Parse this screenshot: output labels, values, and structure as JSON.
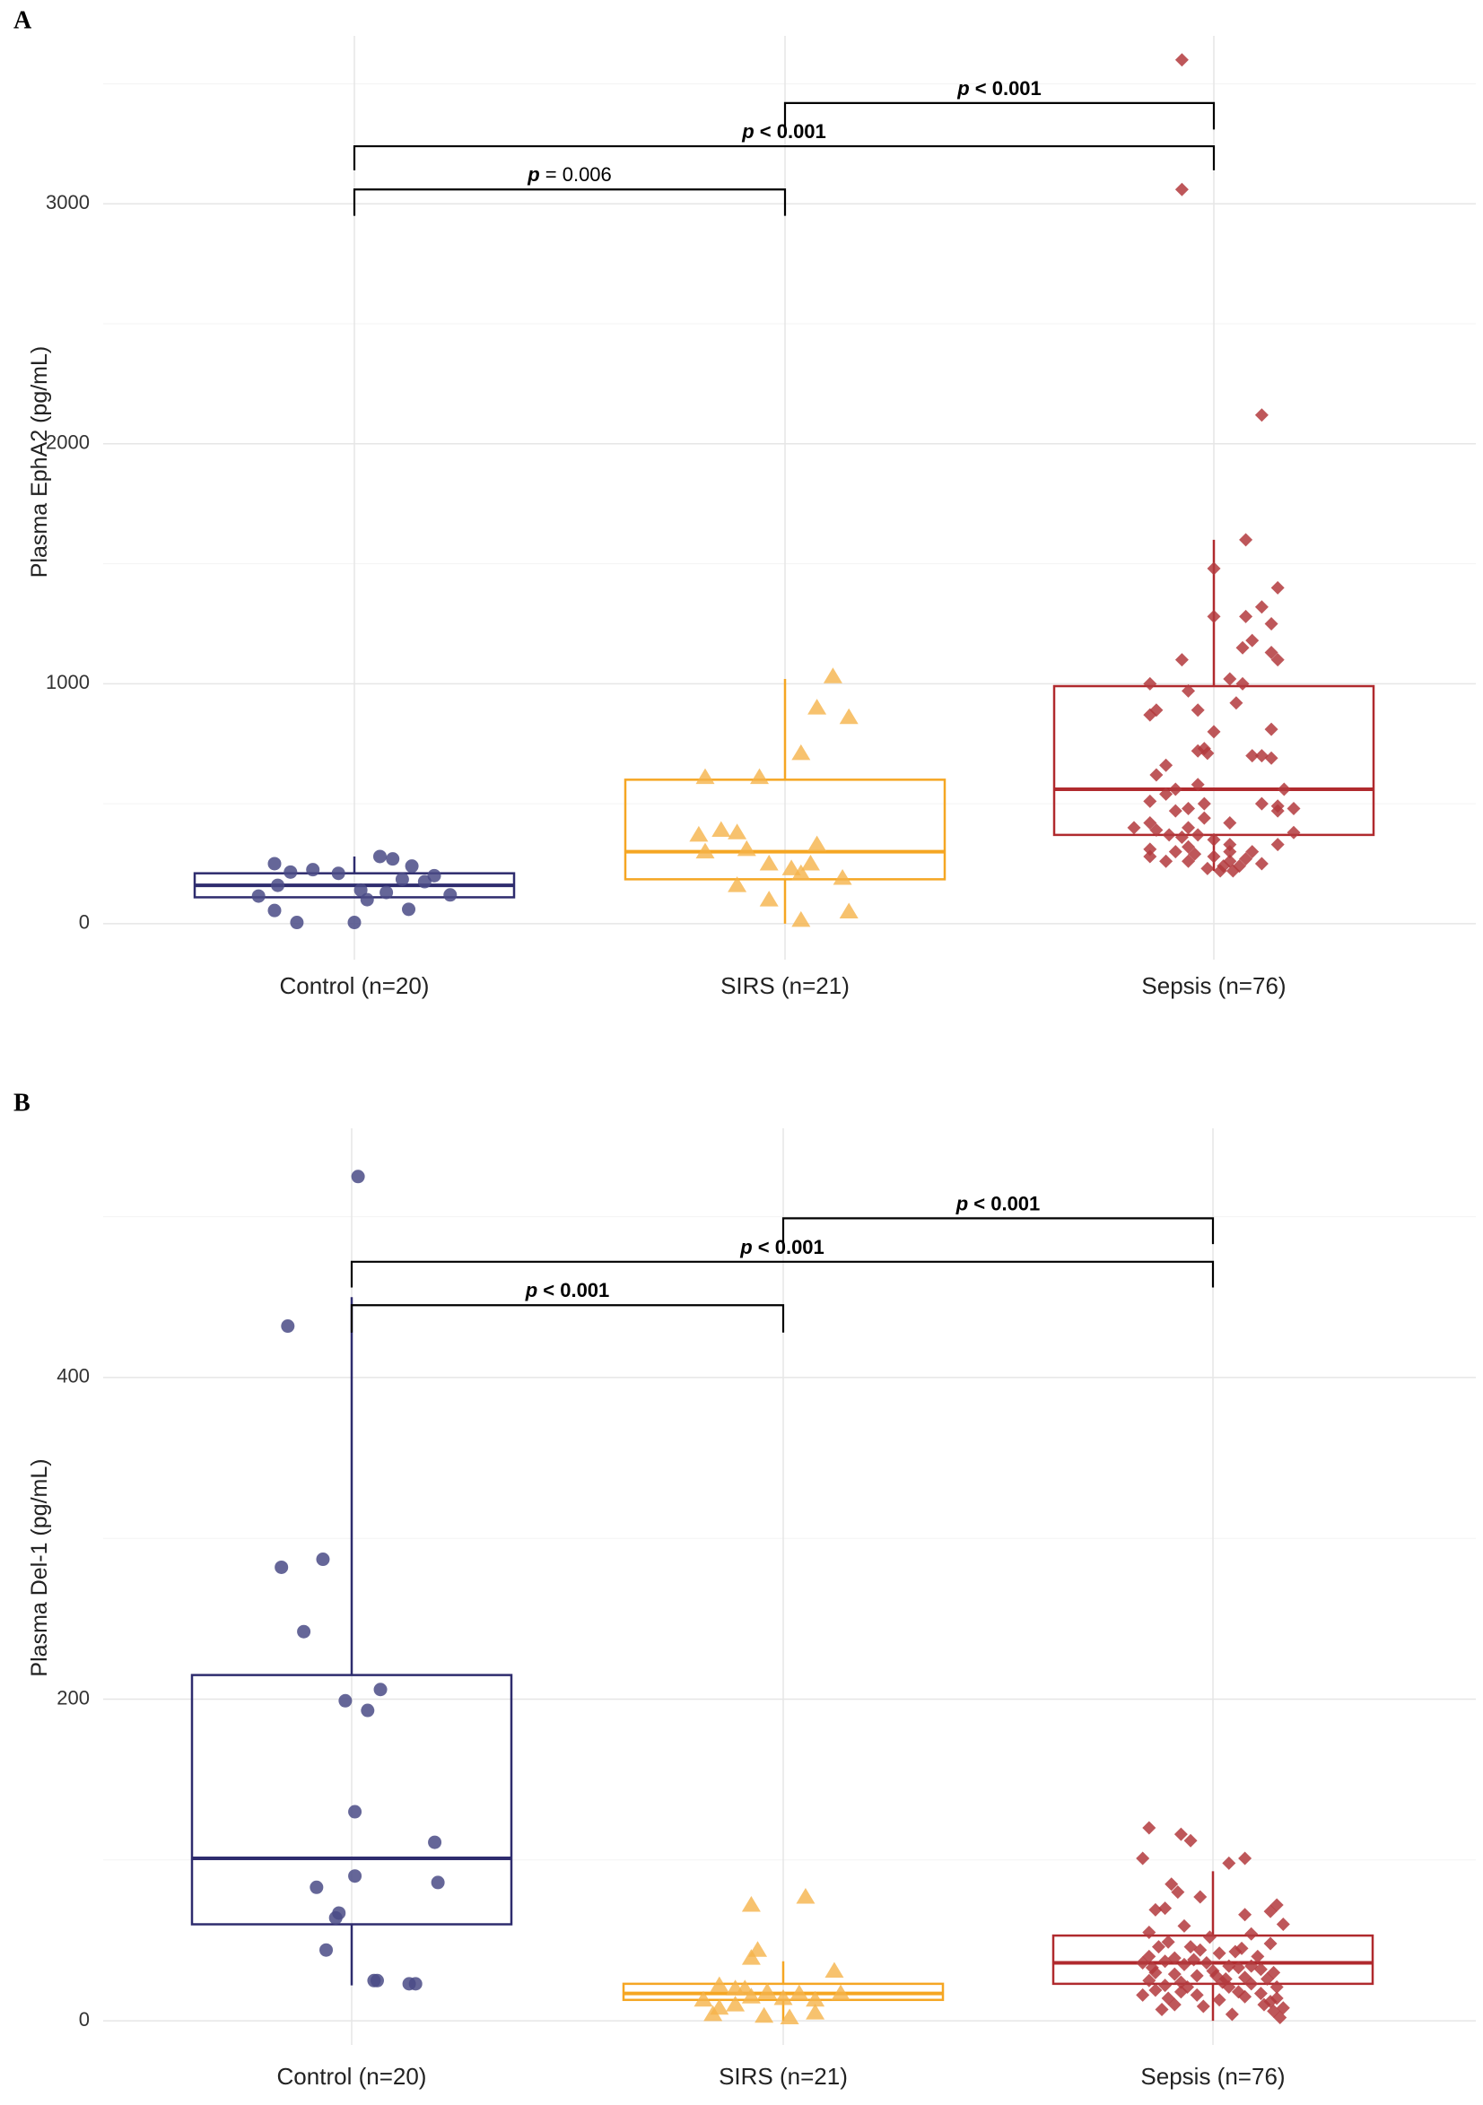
{
  "figure": {
    "colors": {
      "control": "#2e2c6e",
      "control_point": "#4a4b86",
      "sirs": "#f5a623",
      "sirs_point": "#f5b34a",
      "sepsis": "#b02a2e",
      "sepsis_point": "#b3393d"
    }
  },
  "chart_data": [
    {
      "type": "box",
      "panel_label": "A",
      "ylabel": "Plasma EphA2 (pg/mL)",
      "categories": [
        "Control (n=20)",
        "SIRS (n=21)",
        "Sepsis (n=76)"
      ],
      "ylim": [
        -150,
        3700
      ],
      "yticks": [
        0,
        1000,
        2000,
        3000
      ],
      "yticks_labels": [
        "0",
        "1000",
        "2000",
        "3000"
      ],
      "minor_yticks": [
        500,
        1500,
        2500,
        3500
      ],
      "boxes": [
        {
          "q1": 110,
          "median": 160,
          "q3": 210,
          "whisker_low": 110,
          "whisker_high": 280
        },
        {
          "q1": 185,
          "median": 300,
          "q3": 600,
          "whisker_low": 0,
          "whisker_high": 1020
        },
        {
          "q1": 370,
          "median": 560,
          "q3": 990,
          "whisker_low": 220,
          "whisker_high": 1600
        }
      ],
      "points": [
        [
          {
            "dx": -0.25,
            "y": 250
          },
          {
            "dx": -0.2,
            "y": 215
          },
          {
            "dx": -0.05,
            "y": 210
          },
          {
            "dx": 0.25,
            "y": 200
          },
          {
            "dx": 0.08,
            "y": 280
          },
          {
            "dx": 0.12,
            "y": 270
          },
          {
            "dx": 0.18,
            "y": 240
          },
          {
            "dx": -0.13,
            "y": 225
          },
          {
            "dx": 0.15,
            "y": 185
          },
          {
            "dx": 0.22,
            "y": 175
          },
          {
            "dx": -0.24,
            "y": 160
          },
          {
            "dx": 0.1,
            "y": 130
          },
          {
            "dx": 0.04,
            "y": 100
          },
          {
            "dx": 0.02,
            "y": 140
          },
          {
            "dx": -0.3,
            "y": 115
          },
          {
            "dx": 0.3,
            "y": 120
          },
          {
            "dx": -0.25,
            "y": 55
          },
          {
            "dx": 0.17,
            "y": 60
          },
          {
            "dx": -0.18,
            "y": 5
          },
          {
            "dx": 0.0,
            "y": 5
          }
        ],
        [
          {
            "dx": 0.15,
            "y": 1030
          },
          {
            "dx": 0.2,
            "y": 860
          },
          {
            "dx": 0.1,
            "y": 900
          },
          {
            "dx": 0.05,
            "y": 710
          },
          {
            "dx": -0.25,
            "y": 610
          },
          {
            "dx": -0.08,
            "y": 610
          },
          {
            "dx": -0.2,
            "y": 390
          },
          {
            "dx": -0.27,
            "y": 370
          },
          {
            "dx": -0.15,
            "y": 380
          },
          {
            "dx": -0.12,
            "y": 310
          },
          {
            "dx": -0.25,
            "y": 300
          },
          {
            "dx": 0.1,
            "y": 330
          },
          {
            "dx": 0.08,
            "y": 250
          },
          {
            "dx": 0.02,
            "y": 230
          },
          {
            "dx": 0.05,
            "y": 210
          },
          {
            "dx": 0.18,
            "y": 190
          },
          {
            "dx": -0.05,
            "y": 250
          },
          {
            "dx": -0.15,
            "y": 160
          },
          {
            "dx": -0.05,
            "y": 100
          },
          {
            "dx": 0.2,
            "y": 50
          },
          {
            "dx": 0.05,
            "y": 15
          }
        ],
        [
          {
            "dx": -0.1,
            "y": 3600
          },
          {
            "dx": -0.1,
            "y": 3060
          },
          {
            "dx": 0.15,
            "y": 2120
          },
          {
            "dx": 0.1,
            "y": 1600
          },
          {
            "dx": 0.0,
            "y": 1480
          },
          {
            "dx": 0.2,
            "y": 1400
          },
          {
            "dx": 0.15,
            "y": 1320
          },
          {
            "dx": 0.1,
            "y": 1280
          },
          {
            "dx": 0.0,
            "y": 1280
          },
          {
            "dx": 0.18,
            "y": 1250
          },
          {
            "dx": 0.12,
            "y": 1180
          },
          {
            "dx": 0.09,
            "y": 1150
          },
          {
            "dx": 0.18,
            "y": 1130
          },
          {
            "dx": 0.2,
            "y": 1100
          },
          {
            "dx": -0.1,
            "y": 1100
          },
          {
            "dx": 0.05,
            "y": 1020
          },
          {
            "dx": 0.09,
            "y": 1000
          },
          {
            "dx": -0.2,
            "y": 1000
          },
          {
            "dx": -0.08,
            "y": 970
          },
          {
            "dx": 0.07,
            "y": 920
          },
          {
            "dx": -0.18,
            "y": 890
          },
          {
            "dx": -0.2,
            "y": 870
          },
          {
            "dx": -0.05,
            "y": 890
          },
          {
            "dx": 0.18,
            "y": 810
          },
          {
            "dx": 0.0,
            "y": 800
          },
          {
            "dx": -0.03,
            "y": 730
          },
          {
            "dx": -0.02,
            "y": 710
          },
          {
            "dx": -0.05,
            "y": 720
          },
          {
            "dx": 0.12,
            "y": 700
          },
          {
            "dx": 0.15,
            "y": 700
          },
          {
            "dx": 0.18,
            "y": 690
          },
          {
            "dx": -0.15,
            "y": 660
          },
          {
            "dx": -0.18,
            "y": 620
          },
          {
            "dx": -0.05,
            "y": 580
          },
          {
            "dx": -0.12,
            "y": 560
          },
          {
            "dx": -0.15,
            "y": 540
          },
          {
            "dx": -0.2,
            "y": 510
          },
          {
            "dx": -0.03,
            "y": 500
          },
          {
            "dx": 0.15,
            "y": 500
          },
          {
            "dx": 0.2,
            "y": 490
          },
          {
            "dx": -0.08,
            "y": 480
          },
          {
            "dx": -0.12,
            "y": 470
          },
          {
            "dx": 0.2,
            "y": 470
          },
          {
            "dx": 0.25,
            "y": 480
          },
          {
            "dx": -0.03,
            "y": 440
          },
          {
            "dx": -0.2,
            "y": 420
          },
          {
            "dx": -0.08,
            "y": 400
          },
          {
            "dx": 0.05,
            "y": 420
          },
          {
            "dx": -0.25,
            "y": 400
          },
          {
            "dx": -0.18,
            "y": 390
          },
          {
            "dx": -0.14,
            "y": 370
          },
          {
            "dx": -0.1,
            "y": 360
          },
          {
            "dx": -0.05,
            "y": 370
          },
          {
            "dx": 0.0,
            "y": 350
          },
          {
            "dx": 0.05,
            "y": 330
          },
          {
            "dx": 0.25,
            "y": 380
          },
          {
            "dx": -0.2,
            "y": 310
          },
          {
            "dx": 0.2,
            "y": 330
          },
          {
            "dx": -0.12,
            "y": 300
          },
          {
            "dx": -0.08,
            "y": 320
          },
          {
            "dx": 0.05,
            "y": 300
          },
          {
            "dx": 0.12,
            "y": 300
          },
          {
            "dx": -0.2,
            "y": 280
          },
          {
            "dx": 0.0,
            "y": 280
          },
          {
            "dx": -0.15,
            "y": 260
          },
          {
            "dx": -0.08,
            "y": 260
          },
          {
            "dx": 0.05,
            "y": 260
          },
          {
            "dx": 0.15,
            "y": 250
          },
          {
            "dx": 0.03,
            "y": 240
          },
          {
            "dx": 0.08,
            "y": 240
          },
          {
            "dx": -0.02,
            "y": 230
          },
          {
            "dx": 0.06,
            "y": 220
          },
          {
            "dx": 0.02,
            "y": 220
          },
          {
            "dx": 0.1,
            "y": 270
          },
          {
            "dx": -0.06,
            "y": 290
          },
          {
            "dx": 0.22,
            "y": 560
          }
        ]
      ],
      "comparisons": [
        {
          "from": 0,
          "to": 1,
          "y": 3060,
          "drop": 110,
          "p_label": "p",
          "value_text": " = 0.006",
          "bold": false
        },
        {
          "from": 0,
          "to": 2,
          "y": 3240,
          "drop": 100,
          "p_label": "p",
          "value_text": " < 0.001",
          "bold": true
        },
        {
          "from": 1,
          "to": 2,
          "y": 3420,
          "drop": 110,
          "p_label": "p",
          "value_text": " < 0.001",
          "bold": true
        }
      ]
    },
    {
      "type": "box",
      "panel_label": "B",
      "ylabel": "Plasma Del-1 (pg/mL)",
      "categories": [
        "Control (n=20)",
        "SIRS (n=21)",
        "Sepsis (n=76)"
      ],
      "ylim": [
        -15,
        555
      ],
      "yticks": [
        0,
        200,
        400
      ],
      "yticks_labels": [
        "0",
        "200",
        "400"
      ],
      "minor_yticks": [
        100,
        300,
        500
      ],
      "boxes": [
        {
          "q1": 60,
          "median": 101,
          "q3": 215,
          "whisker_low": 22,
          "whisker_high": 450
        },
        {
          "q1": 13,
          "median": 17,
          "q3": 23,
          "whisker_low": 0,
          "whisker_high": 37
        },
        {
          "q1": 23,
          "median": 36,
          "q3": 53,
          "whisker_low": 0,
          "whisker_high": 93
        }
      ],
      "points": [
        [
          {
            "dx": 0.02,
            "y": 525
          },
          {
            "dx": -0.2,
            "y": 432
          },
          {
            "dx": -0.22,
            "y": 282
          },
          {
            "dx": -0.09,
            "y": 287
          },
          {
            "dx": -0.15,
            "y": 242
          },
          {
            "dx": 0.09,
            "y": 206
          },
          {
            "dx": -0.02,
            "y": 199
          },
          {
            "dx": 0.05,
            "y": 193
          },
          {
            "dx": 0.01,
            "y": 130
          },
          {
            "dx": 0.26,
            "y": 111
          },
          {
            "dx": 0.01,
            "y": 90
          },
          {
            "dx": 0.27,
            "y": 86
          },
          {
            "dx": -0.11,
            "y": 83
          },
          {
            "dx": -0.04,
            "y": 67
          },
          {
            "dx": -0.05,
            "y": 64
          },
          {
            "dx": -0.08,
            "y": 44
          },
          {
            "dx": 0.07,
            "y": 25
          },
          {
            "dx": 0.08,
            "y": 25
          },
          {
            "dx": 0.18,
            "y": 23
          },
          {
            "dx": 0.2,
            "y": 23
          }
        ],
        [
          {
            "dx": -0.1,
            "y": 72
          },
          {
            "dx": 0.07,
            "y": 77
          },
          {
            "dx": -0.08,
            "y": 44
          },
          {
            "dx": -0.1,
            "y": 39
          },
          {
            "dx": 0.16,
            "y": 31
          },
          {
            "dx": -0.2,
            "y": 22
          },
          {
            "dx": -0.15,
            "y": 20
          },
          {
            "dx": -0.12,
            "y": 20
          },
          {
            "dx": -0.05,
            "y": 18
          },
          {
            "dx": 0.05,
            "y": 17
          },
          {
            "dx": 0.18,
            "y": 17
          },
          {
            "dx": -0.1,
            "y": 15
          },
          {
            "dx": 0.0,
            "y": 14
          },
          {
            "dx": -0.25,
            "y": 13
          },
          {
            "dx": 0.1,
            "y": 13
          },
          {
            "dx": -0.15,
            "y": 10
          },
          {
            "dx": -0.2,
            "y": 8
          },
          {
            "dx": 0.1,
            "y": 5
          },
          {
            "dx": -0.22,
            "y": 4
          },
          {
            "dx": -0.06,
            "y": 3
          },
          {
            "dx": 0.02,
            "y": 2
          }
        ],
        [
          {
            "dx": -0.2,
            "y": 120
          },
          {
            "dx": -0.1,
            "y": 116
          },
          {
            "dx": -0.07,
            "y": 112
          },
          {
            "dx": -0.22,
            "y": 101
          },
          {
            "dx": 0.05,
            "y": 98
          },
          {
            "dx": 0.1,
            "y": 101
          },
          {
            "dx": -0.13,
            "y": 85
          },
          {
            "dx": -0.11,
            "y": 80
          },
          {
            "dx": -0.04,
            "y": 77
          },
          {
            "dx": -0.15,
            "y": 70
          },
          {
            "dx": -0.18,
            "y": 69
          },
          {
            "dx": 0.2,
            "y": 72
          },
          {
            "dx": 0.18,
            "y": 68
          },
          {
            "dx": 0.1,
            "y": 66
          },
          {
            "dx": -0.09,
            "y": 59
          },
          {
            "dx": -0.2,
            "y": 55
          },
          {
            "dx": -0.01,
            "y": 52
          },
          {
            "dx": 0.12,
            "y": 54
          },
          {
            "dx": -0.14,
            "y": 49
          },
          {
            "dx": -0.07,
            "y": 46
          },
          {
            "dx": 0.18,
            "y": 48
          },
          {
            "dx": -0.17,
            "y": 46
          },
          {
            "dx": -0.04,
            "y": 44
          },
          {
            "dx": 0.07,
            "y": 43
          },
          {
            "dx": 0.02,
            "y": 42
          },
          {
            "dx": -0.2,
            "y": 40
          },
          {
            "dx": -0.12,
            "y": 39
          },
          {
            "dx": -0.15,
            "y": 37
          },
          {
            "dx": -0.22,
            "y": 36
          },
          {
            "dx": -0.09,
            "y": 35
          },
          {
            "dx": -0.02,
            "y": 36
          },
          {
            "dx": 0.05,
            "y": 34
          },
          {
            "dx": 0.08,
            "y": 33
          },
          {
            "dx": 0.12,
            "y": 34
          },
          {
            "dx": 0.15,
            "y": 32
          },
          {
            "dx": 0.19,
            "y": 30
          },
          {
            "dx": -0.18,
            "y": 30
          },
          {
            "dx": -0.12,
            "y": 29
          },
          {
            "dx": -0.05,
            "y": 28
          },
          {
            "dx": 0.01,
            "y": 28
          },
          {
            "dx": 0.1,
            "y": 27
          },
          {
            "dx": 0.17,
            "y": 26
          },
          {
            "dx": -0.2,
            "y": 25
          },
          {
            "dx": -0.1,
            "y": 24
          },
          {
            "dx": 0.03,
            "y": 24
          },
          {
            "dx": 0.12,
            "y": 23
          },
          {
            "dx": -0.15,
            "y": 22
          },
          {
            "dx": -0.08,
            "y": 21
          },
          {
            "dx": 0.05,
            "y": 21
          },
          {
            "dx": 0.2,
            "y": 21
          },
          {
            "dx": -0.18,
            "y": 19
          },
          {
            "dx": -0.1,
            "y": 18
          },
          {
            "dx": 0.08,
            "y": 18
          },
          {
            "dx": 0.15,
            "y": 17
          },
          {
            "dx": -0.22,
            "y": 16
          },
          {
            "dx": -0.05,
            "y": 16
          },
          {
            "dx": 0.1,
            "y": 15
          },
          {
            "dx": 0.2,
            "y": 14
          },
          {
            "dx": -0.14,
            "y": 14
          },
          {
            "dx": 0.02,
            "y": 13
          },
          {
            "dx": 0.18,
            "y": 12
          },
          {
            "dx": -0.12,
            "y": 10
          },
          {
            "dx": 0.16,
            "y": 10
          },
          {
            "dx": -0.03,
            "y": 9
          },
          {
            "dx": 0.22,
            "y": 8
          },
          {
            "dx": -0.16,
            "y": 7
          },
          {
            "dx": 0.19,
            "y": 6
          },
          {
            "dx": 0.06,
            "y": 4
          },
          {
            "dx": 0.21,
            "y": 2
          },
          {
            "dx": 0.0,
            "y": 31
          },
          {
            "dx": -0.06,
            "y": 38
          },
          {
            "dx": 0.14,
            "y": 40
          },
          {
            "dx": -0.19,
            "y": 33
          },
          {
            "dx": 0.09,
            "y": 45
          },
          {
            "dx": 0.04,
            "y": 26
          },
          {
            "dx": 0.22,
            "y": 60
          }
        ]
      ],
      "comparisons": [
        {
          "from": 0,
          "to": 1,
          "y": 445,
          "drop": 17,
          "p_label": "p",
          "value_text": " < 0.001",
          "bold": true
        },
        {
          "from": 0,
          "to": 2,
          "y": 472,
          "drop": 16,
          "p_label": "p",
          "value_text": " < 0.001",
          "bold": true
        },
        {
          "from": 1,
          "to": 2,
          "y": 499,
          "drop": 16,
          "p_label": "p",
          "value_text": " < 0.001",
          "bold": true
        }
      ]
    }
  ]
}
